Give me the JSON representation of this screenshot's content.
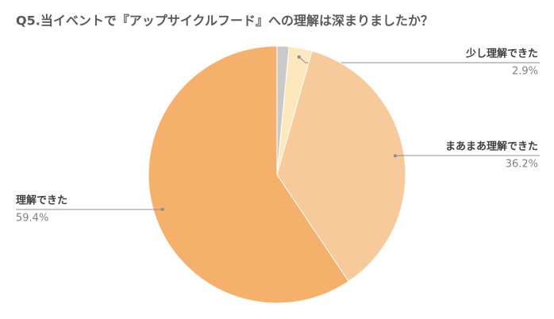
{
  "chart_data": {
    "type": "pie",
    "title": "Q5.当イベントで『アップサイクルフード』への理解は深まりましたか？",
    "categories": [
      null,
      "少し理解できた",
      "まあまあ理解できた",
      "理解できた"
    ],
    "values": [
      1.5,
      2.9,
      36.2,
      59.4
    ],
    "value_labels": [
      null,
      "2.9%",
      "36.2%",
      "59.4%"
    ],
    "colors": [
      "#c9c9c9",
      "#fde8bd",
      "#f8c99b",
      "#f5b16b"
    ]
  }
}
